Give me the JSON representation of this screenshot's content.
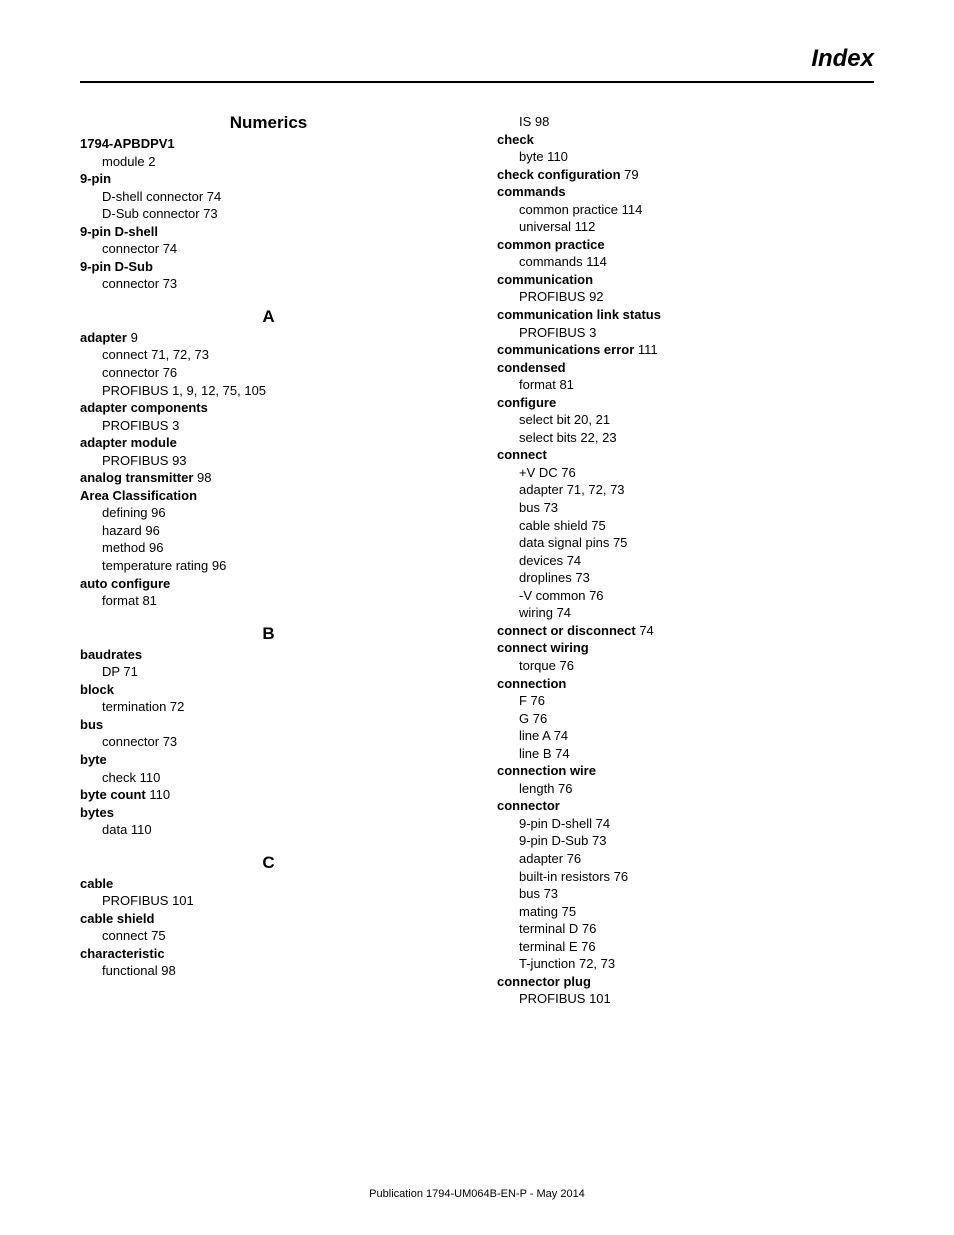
{
  "header": {
    "title": "Index"
  },
  "footer": {
    "text": "Publication 1794-UM064B-EN-P - May 2014"
  },
  "left": {
    "sections": [
      {
        "letter": "Numerics",
        "entries": [
          {
            "term": "1794-APBDPV1",
            "subs": [
              {
                "text": "module 2"
              }
            ]
          },
          {
            "term": "9-pin",
            "subs": [
              {
                "text": "D-shell connector 74"
              },
              {
                "text": "D-Sub connector 73"
              }
            ]
          },
          {
            "term": "9-pin D-shell",
            "subs": [
              {
                "text": "connector 74"
              }
            ]
          },
          {
            "term": "9-pin D-Sub",
            "subs": [
              {
                "text": "connector 73"
              }
            ]
          }
        ]
      },
      {
        "letter": "A",
        "entries": [
          {
            "term": "adapter",
            "pages": " 9",
            "subs": [
              {
                "text": "connect 71, 72, 73"
              },
              {
                "text": "connector 76"
              },
              {
                "text": "PROFIBUS 1, 9, 12, 75, 105"
              }
            ]
          },
          {
            "term": "adapter components",
            "subs": [
              {
                "text": "PROFIBUS 3"
              }
            ]
          },
          {
            "term": "adapter module",
            "subs": [
              {
                "text": "PROFIBUS 93"
              }
            ]
          },
          {
            "term": "analog transmitter",
            "pages": " 98"
          },
          {
            "term": "Area Classification",
            "subs": [
              {
                "text": "defining 96"
              },
              {
                "text": "hazard 96"
              },
              {
                "text": "method 96"
              },
              {
                "text": "temperature rating 96"
              }
            ]
          },
          {
            "term": "auto configure",
            "subs": [
              {
                "text": "format 81"
              }
            ]
          }
        ]
      },
      {
        "letter": "B",
        "entries": [
          {
            "term": "baudrates",
            "subs": [
              {
                "text": "DP 71"
              }
            ]
          },
          {
            "term": "block",
            "subs": [
              {
                "text": "termination 72"
              }
            ]
          },
          {
            "term": "bus",
            "subs": [
              {
                "text": "connector 73"
              }
            ]
          },
          {
            "term": "byte",
            "subs": [
              {
                "text": "check 110"
              }
            ]
          },
          {
            "term": "byte count",
            "pages": " 110"
          },
          {
            "term": "bytes",
            "subs": [
              {
                "text": "data 110"
              }
            ]
          }
        ]
      },
      {
        "letter": "C",
        "entries": [
          {
            "term": "cable",
            "subs": [
              {
                "text": "PROFIBUS 101"
              }
            ]
          },
          {
            "term": "cable shield",
            "subs": [
              {
                "text": "connect 75"
              }
            ]
          },
          {
            "term": "characteristic",
            "subs": [
              {
                "text": "functional 98"
              }
            ]
          }
        ]
      }
    ]
  },
  "right": {
    "preEntries": [
      {
        "text": "IS 98"
      }
    ],
    "entries": [
      {
        "term": "check",
        "subs": [
          {
            "text": "byte 110"
          }
        ]
      },
      {
        "term": "check configuration",
        "pages": " 79"
      },
      {
        "term": "commands",
        "subs": [
          {
            "text": "common practice 114"
          },
          {
            "text": "universal 112"
          }
        ]
      },
      {
        "term": "common practice",
        "subs": [
          {
            "text": "commands 114"
          }
        ]
      },
      {
        "term": "communication",
        "subs": [
          {
            "text": "PROFIBUS 92"
          }
        ]
      },
      {
        "term": "communication link status",
        "subs": [
          {
            "text": "PROFIBUS 3"
          }
        ]
      },
      {
        "term": "communications error",
        "pages": " 111"
      },
      {
        "term": "condensed",
        "subs": [
          {
            "text": "format 81"
          }
        ]
      },
      {
        "term": "configure",
        "subs": [
          {
            "text": "select bit 20, 21"
          },
          {
            "text": "select bits 22, 23"
          }
        ]
      },
      {
        "term": "connect",
        "subs": [
          {
            "text": "+V DC 76"
          },
          {
            "text": "adapter 71, 72, 73"
          },
          {
            "text": "bus 73"
          },
          {
            "text": "cable shield 75"
          },
          {
            "text": "data signal pins 75"
          },
          {
            "text": "devices 74"
          },
          {
            "text": "droplines 73"
          },
          {
            "text": "-V common 76"
          },
          {
            "text": "wiring 74"
          }
        ]
      },
      {
        "term": "connect or disconnect",
        "pages": " 74"
      },
      {
        "term": "connect wiring",
        "subs": [
          {
            "text": "torque 76"
          }
        ]
      },
      {
        "term": "connection",
        "subs": [
          {
            "text": "F 76"
          },
          {
            "text": "G 76"
          },
          {
            "text": "line A 74"
          },
          {
            "text": "line B 74"
          }
        ]
      },
      {
        "term": "connection wire",
        "subs": [
          {
            "text": "length 76"
          }
        ]
      },
      {
        "term": "connector",
        "subs": [
          {
            "text": "9-pin D-shell 74"
          },
          {
            "text": "9-pin D-Sub 73"
          },
          {
            "text": "adapter 76"
          },
          {
            "text": "built-in resistors 76"
          },
          {
            "text": "bus 73"
          },
          {
            "text": "mating 75"
          },
          {
            "text": "terminal D 76"
          },
          {
            "text": "terminal E 76"
          },
          {
            "text": "T-junction 72, 73"
          }
        ]
      },
      {
        "term": "connector plug",
        "subs": [
          {
            "text": "PROFIBUS 101"
          }
        ]
      }
    ]
  }
}
